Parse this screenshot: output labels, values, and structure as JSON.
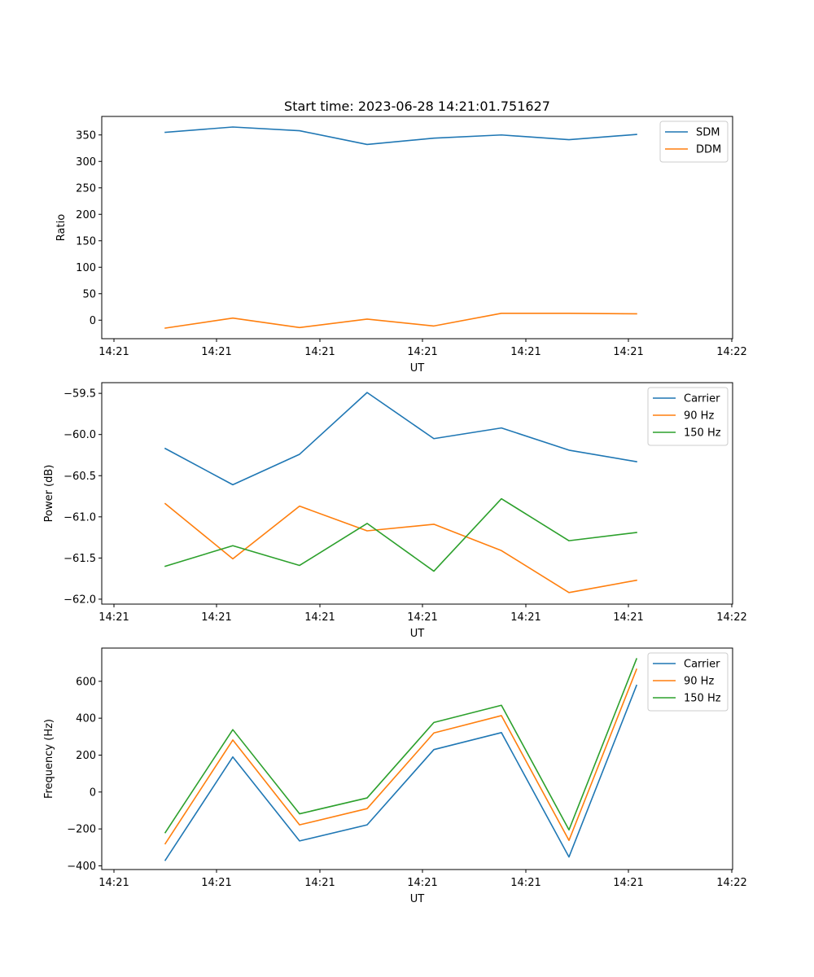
{
  "chart_data": [
    {
      "type": "line",
      "title": "Start time: 2023-06-28 14:21:01.751627",
      "xlabel": "UT",
      "ylabel": "Ratio",
      "x_tick_labels": [
        "14:21",
        "14:21",
        "14:21",
        "14:21",
        "14:21",
        "14:21",
        "14:21",
        "14:22"
      ],
      "ylim": [
        -35,
        385
      ],
      "y_ticks": [
        0,
        50,
        100,
        150,
        200,
        250,
        300,
        350
      ],
      "y_tick_labels": [
        "0",
        "50",
        "100",
        "150",
        "200",
        "250",
        "300",
        "350"
      ],
      "legend_position": "top-right",
      "series": [
        {
          "name": "SDM",
          "color": "#1f77b4",
          "values": [
            355,
            365,
            358,
            332,
            344,
            350,
            341,
            351
          ]
        },
        {
          "name": "DDM",
          "color": "#ff7f0e",
          "values": [
            -15,
            4,
            -14,
            2,
            -11,
            13,
            13,
            12
          ]
        }
      ]
    },
    {
      "type": "line",
      "xlabel": "UT",
      "ylabel": "Power (dB)",
      "x_tick_labels": [
        "14:21",
        "14:21",
        "14:21",
        "14:21",
        "14:21",
        "14:21",
        "14:21",
        "14:22"
      ],
      "ylim": [
        -62.06,
        -59.37
      ],
      "y_ticks": [
        -62.0,
        -61.5,
        -61.0,
        -60.5,
        -60.0,
        -59.5
      ],
      "y_tick_labels": [
        "−62.0",
        "−61.5",
        "−61.0",
        "−60.5",
        "−60.0",
        "−59.5"
      ],
      "legend_position": "top-right",
      "series": [
        {
          "name": "Carrier",
          "color": "#1f77b4",
          "values": [
            -60.17,
            -60.61,
            -60.24,
            -59.49,
            -60.05,
            -59.92,
            -60.19,
            -60.33
          ]
        },
        {
          "name": "90 Hz",
          "color": "#ff7f0e",
          "values": [
            -60.84,
            -61.51,
            -60.87,
            -61.17,
            -61.09,
            -61.41,
            -61.92,
            -61.77
          ]
        },
        {
          "name": "150 Hz",
          "color": "#2ca02c",
          "values": [
            -61.6,
            -61.35,
            -61.59,
            -61.08,
            -61.66,
            -60.78,
            -61.29,
            -61.19
          ]
        }
      ]
    },
    {
      "type": "line",
      "xlabel": "UT",
      "ylabel": "Frequency (Hz)",
      "x_tick_labels": [
        "14:21",
        "14:21",
        "14:21",
        "14:21",
        "14:21",
        "14:21",
        "14:21",
        "14:22"
      ],
      "ylim": [
        -420,
        780
      ],
      "y_ticks": [
        -400,
        -200,
        0,
        200,
        400,
        600
      ],
      "y_tick_labels": [
        "−400",
        "−200",
        "0",
        "200",
        "400",
        "600"
      ],
      "legend_position": "top-right",
      "series": [
        {
          "name": "Carrier",
          "color": "#1f77b4",
          "values": [
            -370,
            190,
            -265,
            -178,
            230,
            322,
            -352,
            578
          ]
        },
        {
          "name": "90 Hz",
          "color": "#ff7f0e",
          "values": [
            -280,
            282,
            -178,
            -90,
            320,
            414,
            -262,
            665
          ]
        },
        {
          "name": "150 Hz",
          "color": "#2ca02c",
          "values": [
            -220,
            338,
            -118,
            -32,
            377,
            470,
            -205,
            722
          ]
        }
      ]
    }
  ]
}
